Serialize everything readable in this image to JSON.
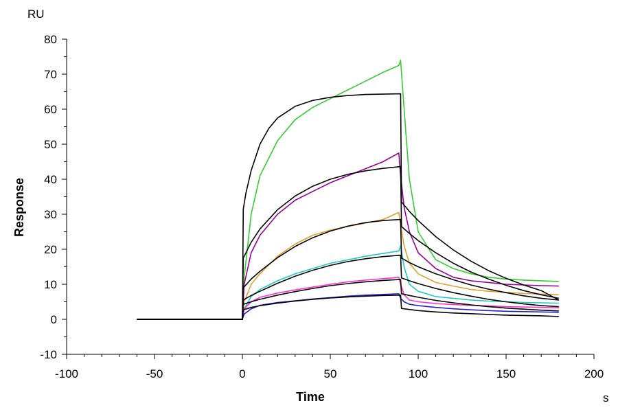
{
  "chart_data": {
    "type": "line",
    "title": "",
    "xlabel": "Time",
    "ylabel": "Response",
    "x_unit": "s",
    "y_unit": "RU",
    "xlim": [
      -100,
      200
    ],
    "ylim": [
      -10,
      80
    ],
    "x_ticks": [
      -100,
      -50,
      0,
      50,
      100,
      150,
      200
    ],
    "y_ticks": [
      -10,
      0,
      10,
      20,
      30,
      40,
      50,
      60,
      70,
      80
    ],
    "x_ticks_text": [
      "-100",
      "-50",
      "0",
      "50",
      "100",
      "150",
      "200"
    ],
    "y_ticks_text": [
      "-10",
      "0",
      "10",
      "20",
      "30",
      "40",
      "50",
      "60",
      "70",
      "80"
    ],
    "grid": false,
    "legend": "none",
    "series": [
      {
        "color": "#33cc33",
        "x": [
          -60,
          0,
          1,
          5,
          10,
          20,
          30,
          40,
          50,
          60,
          70,
          80,
          89,
          90,
          92,
          95,
          100,
          110,
          120,
          130,
          140,
          150,
          160,
          170,
          180
        ],
        "y": [
          0,
          0,
          12,
          30,
          41,
          51,
          57,
          60.5,
          63,
          65.5,
          68,
          70.5,
          72.5,
          74,
          60,
          40,
          25,
          17,
          14.5,
          13,
          12,
          11.5,
          11.2,
          11,
          10.8
        ]
      },
      {
        "color": "#990099",
        "x": [
          -60,
          0,
          1,
          5,
          10,
          20,
          30,
          40,
          50,
          60,
          70,
          80,
          89,
          90,
          92,
          95,
          100,
          110,
          120,
          130,
          140,
          150,
          160,
          170,
          180
        ],
        "y": [
          0,
          0,
          10,
          19,
          24,
          30,
          34,
          36.5,
          39,
          41,
          43,
          45,
          47.5,
          41,
          32,
          25,
          19,
          14.5,
          12,
          11,
          10.5,
          10,
          9.8,
          9.6,
          9.5
        ]
      },
      {
        "color": "#e0a030",
        "x": [
          -60,
          0,
          1,
          5,
          10,
          20,
          30,
          40,
          50,
          60,
          70,
          80,
          89,
          90,
          92,
          95,
          100,
          110,
          120,
          130,
          140,
          150,
          160,
          170,
          180
        ],
        "y": [
          0,
          0,
          5,
          10,
          13,
          18,
          21.5,
          24,
          25.5,
          26.5,
          27.5,
          28.5,
          30.5,
          27,
          21,
          16,
          13,
          10.5,
          9.5,
          8.5,
          8,
          7.7,
          7.4,
          7.2,
          7
        ]
      },
      {
        "color": "#20c8c8",
        "x": [
          -60,
          0,
          1,
          5,
          10,
          20,
          30,
          40,
          50,
          60,
          70,
          80,
          89,
          90,
          92,
          95,
          100,
          110,
          120,
          130,
          140,
          150,
          160,
          170,
          180
        ],
        "y": [
          0,
          0,
          3,
          6.5,
          8.5,
          11,
          13,
          14.5,
          16,
          17,
          18,
          18.8,
          19.5,
          21,
          15,
          10,
          8,
          6.5,
          6,
          5.5,
          5.2,
          5,
          4.8,
          4.7,
          4.6
        ]
      },
      {
        "color": "#ff33cc",
        "x": [
          -60,
          0,
          1,
          5,
          10,
          20,
          30,
          40,
          50,
          60,
          70,
          80,
          89,
          90,
          92,
          95,
          100,
          110,
          120,
          130,
          140,
          150,
          160,
          170,
          180
        ],
        "y": [
          0,
          0,
          3,
          5,
          6.3,
          7.5,
          8.4,
          9.2,
          10,
          10.7,
          11.2,
          11.6,
          12,
          10,
          7,
          5.5,
          5,
          4.5,
          4.2,
          4,
          3.8,
          3.6,
          3.5,
          3.4,
          3.3
        ]
      },
      {
        "color": "#2222cc",
        "x": [
          -60,
          0,
          1,
          5,
          10,
          20,
          30,
          40,
          50,
          60,
          70,
          80,
          89,
          90,
          92,
          95,
          100,
          110,
          120,
          130,
          140,
          150,
          160,
          170,
          180
        ],
        "y": [
          0,
          0,
          1.5,
          3,
          4,
          4.8,
          5.3,
          5.8,
          6.2,
          6.6,
          6.9,
          7.1,
          7.3,
          6,
          5,
          4.3,
          3.9,
          3.4,
          3,
          2.7,
          2.5,
          2.3,
          2.2,
          2.1,
          2
        ]
      },
      {
        "color": "#000000",
        "x": [
          -60,
          0,
          0.5,
          2,
          5,
          10,
          15,
          20,
          30,
          40,
          50,
          60,
          70,
          80,
          90,
          90.5,
          95,
          100,
          110,
          120,
          130,
          140,
          150,
          160,
          170,
          180
        ],
        "y": [
          0,
          0,
          31.5,
          36,
          42.5,
          50,
          54.5,
          57.5,
          60.8,
          62.5,
          63.4,
          63.9,
          64.2,
          64.3,
          64.4,
          33.5,
          30.8,
          28.2,
          23.6,
          19.8,
          16.6,
          13.9,
          11.7,
          9.8,
          8.2,
          5.5
        ]
      },
      {
        "color": "#000000",
        "x": [
          -60,
          0,
          0.5,
          5,
          10,
          20,
          30,
          40,
          50,
          60,
          70,
          80,
          90,
          90.5,
          95,
          100,
          110,
          120,
          130,
          140,
          150,
          160,
          170,
          180
        ],
        "y": [
          0,
          0,
          17.5,
          22,
          25.8,
          31.3,
          35.2,
          38,
          40,
          41.4,
          42.4,
          43.1,
          43.6,
          26.5,
          24.5,
          22.5,
          19,
          16,
          13.5,
          11.5,
          9.7,
          8.2,
          7,
          6
        ]
      },
      {
        "color": "#000000",
        "x": [
          -60,
          0,
          0.5,
          5,
          10,
          20,
          30,
          40,
          50,
          60,
          70,
          80,
          90,
          90.5,
          95,
          100,
          110,
          120,
          130,
          140,
          150,
          160,
          170,
          180
        ],
        "y": [
          0,
          0,
          9,
          11.5,
          13.7,
          17.6,
          20.8,
          23.3,
          25.2,
          26.6,
          27.6,
          28.2,
          28.5,
          17.5,
          16.2,
          15,
          13,
          11.3,
          9.8,
          8.6,
          7.6,
          6.7,
          6,
          5.5
        ]
      },
      {
        "color": "#000000",
        "x": [
          -60,
          0,
          0.5,
          5,
          10,
          20,
          30,
          40,
          50,
          60,
          70,
          80,
          90,
          90.5,
          95,
          100,
          110,
          120,
          130,
          140,
          150,
          160,
          170,
          180
        ],
        "y": [
          0,
          0,
          5.5,
          6.8,
          8,
          10.3,
          12.3,
          14,
          15.4,
          16.5,
          17.3,
          17.9,
          18.3,
          11.8,
          11,
          10.2,
          8.8,
          7.6,
          6.6,
          5.7,
          5,
          4.4,
          3.9,
          3.6
        ]
      },
      {
        "color": "#000000",
        "x": [
          -60,
          0,
          0.5,
          5,
          10,
          20,
          30,
          40,
          50,
          60,
          70,
          80,
          90,
          90.5,
          95,
          100,
          110,
          120,
          130,
          140,
          150,
          160,
          170,
          180
        ],
        "y": [
          0,
          0,
          4.3,
          5,
          5.7,
          6.9,
          7.9,
          8.8,
          9.6,
          10.2,
          10.7,
          11.1,
          11.4,
          7.3,
          6.8,
          6.3,
          5.4,
          4.7,
          4.1,
          3.6,
          3.2,
          2.9,
          2.6,
          2.4
        ]
      },
      {
        "color": "#000000",
        "x": [
          -60,
          0,
          0.5,
          5,
          10,
          20,
          30,
          40,
          50,
          60,
          70,
          80,
          90,
          90.5,
          95,
          100,
          110,
          120,
          130,
          140,
          150,
          160,
          170,
          180
        ],
        "y": [
          0,
          0,
          2.7,
          3.4,
          3.9,
          4.6,
          5.2,
          5.7,
          6.1,
          6.4,
          6.6,
          6.8,
          6.9,
          3.1,
          2.8,
          2.5,
          2.1,
          1.8,
          1.6,
          1.4,
          1.2,
          1.1,
          1,
          0.8
        ]
      }
    ]
  }
}
